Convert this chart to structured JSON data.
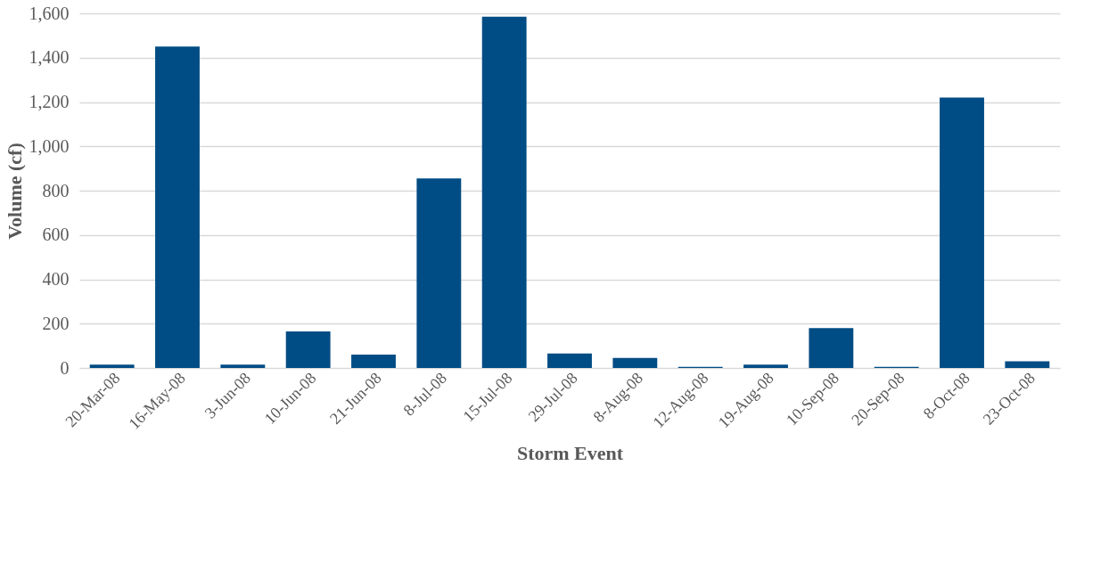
{
  "chart_data": {
    "type": "bar",
    "xlabel": "Storm Event",
    "ylabel": "Volume (cf)",
    "categories": [
      "20-Mar-08",
      "16-May-08",
      "3-Jun-08",
      "10-Jun-08",
      "21-Jun-08",
      "8-Jul-08",
      "15-Jul-08",
      "29-Jul-08",
      "8-Aug-08",
      "12-Aug-08",
      "19-Aug-08",
      "10-Sep-08",
      "20-Sep-08",
      "8-Oct-08",
      "23-Oct-08"
    ],
    "values": [
      15,
      1450,
      15,
      165,
      60,
      855,
      1585,
      65,
      45,
      5,
      15,
      180,
      5,
      1220,
      30
    ],
    "color": "#004c84",
    "ylim": [
      0,
      1600
    ],
    "yticks": [
      {
        "value": 0,
        "label": "0"
      },
      {
        "value": 200,
        "label": "200"
      },
      {
        "value": 400,
        "label": "400"
      },
      {
        "value": 600,
        "label": "600"
      },
      {
        "value": 800,
        "label": "800"
      },
      {
        "value": 1000,
        "label": "1,000"
      },
      {
        "value": 1200,
        "label": "1,200"
      },
      {
        "value": 1400,
        "label": "1,400"
      },
      {
        "value": 1600,
        "label": "1,600"
      }
    ],
    "grid": "y"
  }
}
